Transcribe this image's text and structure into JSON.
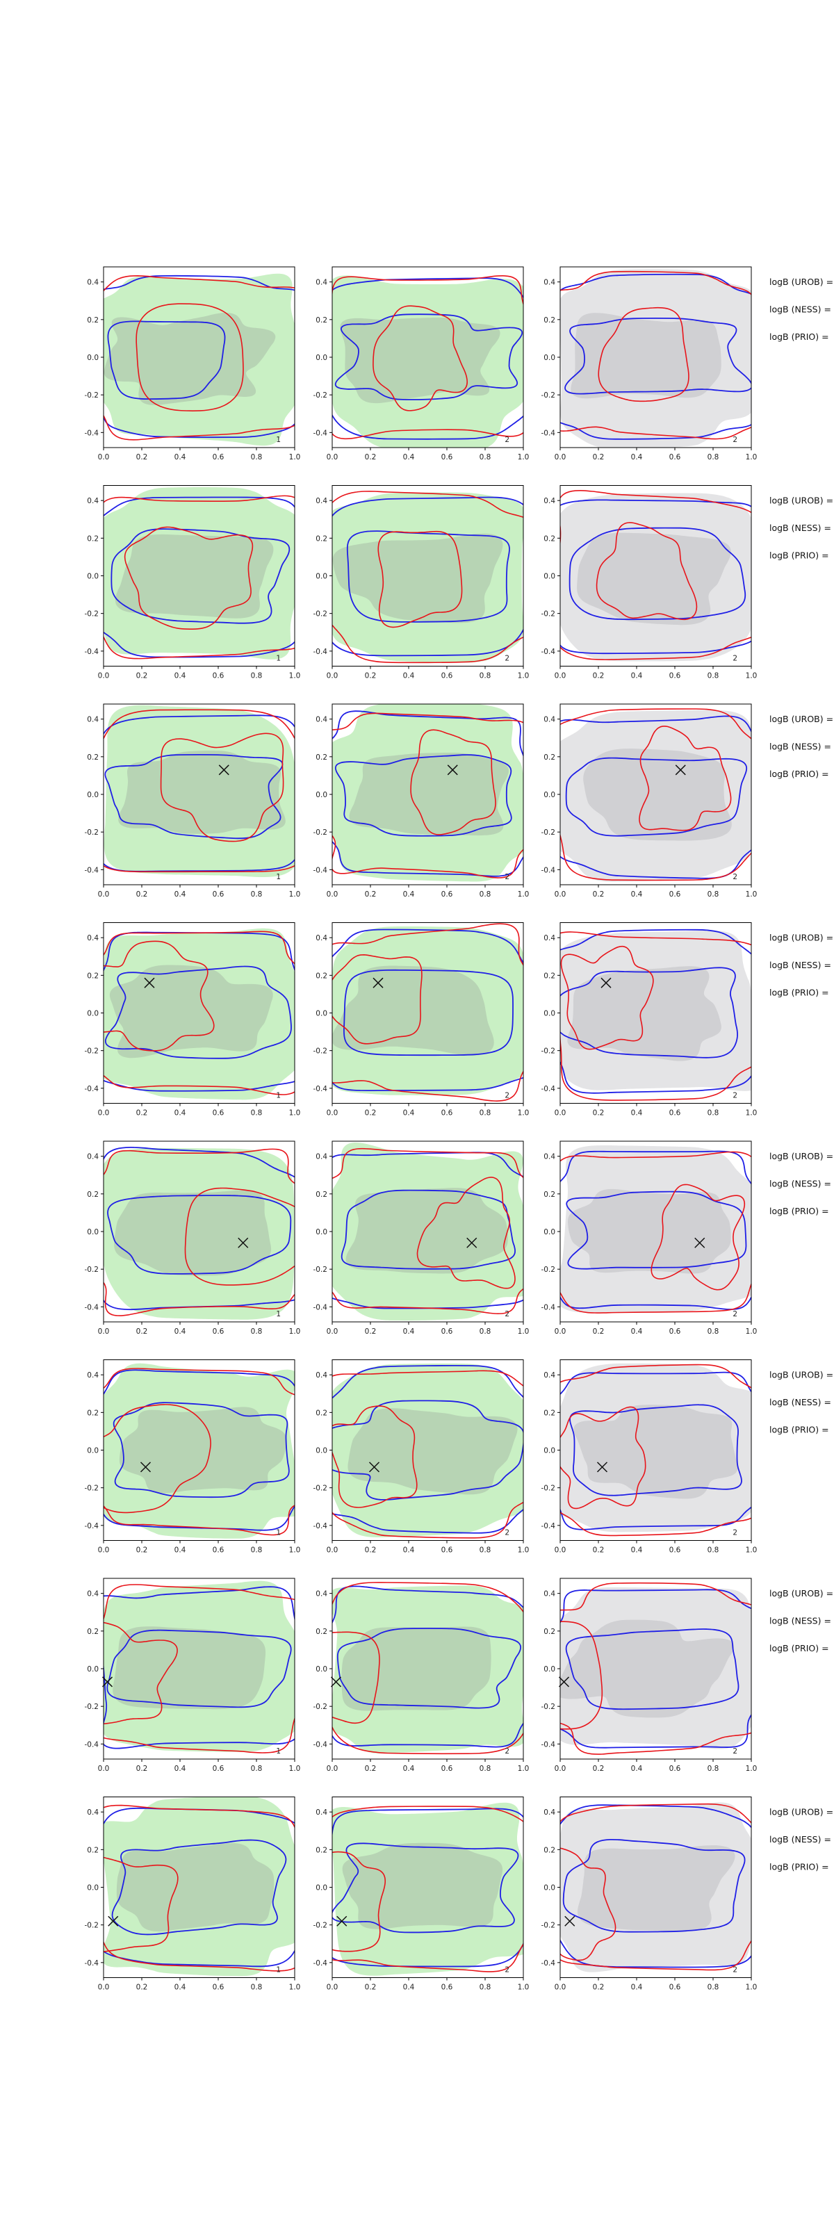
{
  "chart_data": {
    "type": "contour",
    "layout": {
      "rows": 8,
      "cols": 3
    },
    "xlim": [
      0.0,
      1.0
    ],
    "ylim": [
      -0.48,
      0.48
    ],
    "x_ticks": [
      "0.0",
      "0.2",
      "0.4",
      "0.6",
      "0.8",
      "1.0"
    ],
    "y_ticks": [
      "0.4",
      "0.2",
      "0.0",
      "-0.2",
      "-0.4"
    ],
    "colors": {
      "blue_contour": "#1f1fe6",
      "red_contour": "#e8141a",
      "green_fill": "#c9f0c4",
      "green_inner_fill": "#b4cfb1",
      "grey_fill": "#e4e4e6",
      "grey_inner_fill": "#cdcdcf",
      "marker": "#111111"
    },
    "panel_labels": [
      "1",
      "2",
      "2"
    ],
    "side_labels": [
      "logB (UROB) =",
      "logB (NESS) =",
      "logB (PRIO) ="
    ],
    "rows": [
      {
        "marker": null
      },
      {
        "marker": null
      },
      {
        "marker": {
          "x": 0.63,
          "y": 0.13
        }
      },
      {
        "marker": {
          "x": 0.24,
          "y": 0.16
        }
      },
      {
        "marker": {
          "x": 0.73,
          "y": -0.06
        }
      },
      {
        "marker": {
          "x": 0.22,
          "y": -0.09
        }
      },
      {
        "marker": {
          "x": 0.02,
          "y": -0.07
        }
      },
      {
        "marker": {
          "x": 0.05,
          "y": -0.18
        }
      }
    ]
  }
}
